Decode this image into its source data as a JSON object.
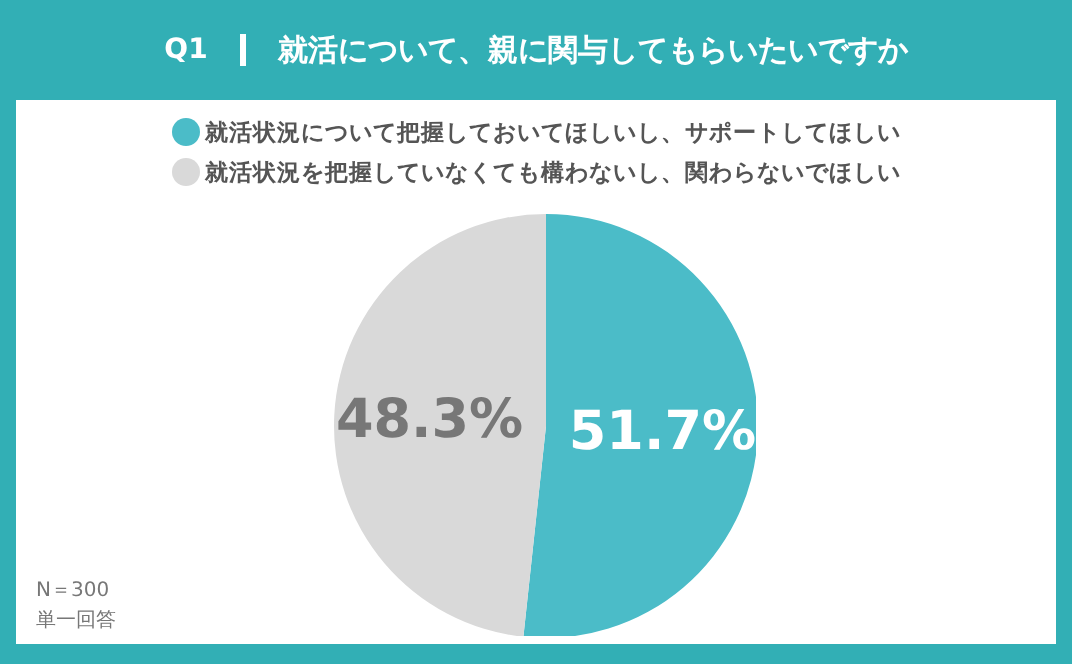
{
  "chart_data": {
    "type": "pie",
    "title": "Q1",
    "subtitle": "就活について、親に関与してもらいたいですか",
    "categories": [
      "就活状況について把握しておいてほしいし、サポートしてほしい",
      "就活状況を把握していなくても構わないし、関わらないでほしい"
    ],
    "values": [
      51.7,
      48.3
    ],
    "colors": [
      "#4bbcc8",
      "#d9d9d9"
    ],
    "value_labels": [
      "51.7%",
      "48.3%"
    ],
    "legend": "top",
    "annotations": [
      "N＝300",
      "単一回答"
    ]
  }
}
